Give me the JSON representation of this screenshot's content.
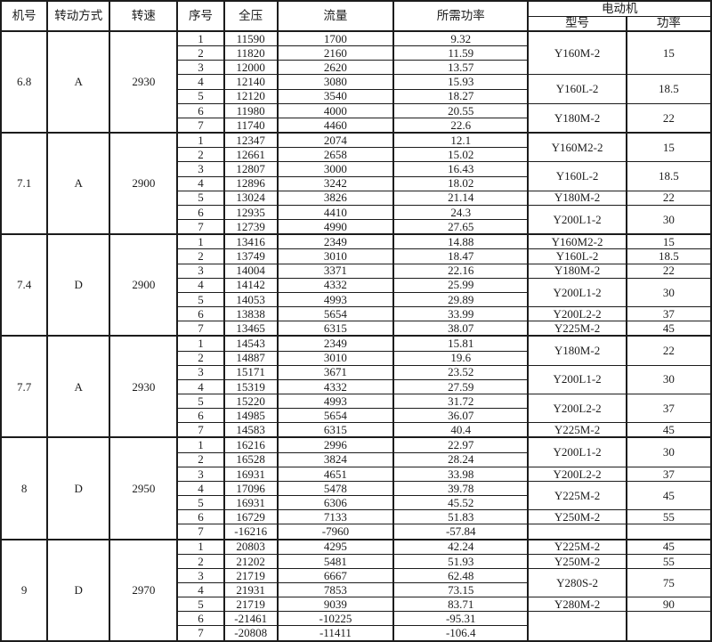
{
  "colors": {
    "border": "#1c1c1c",
    "text": "#1c1c1c",
    "background": "#ffffff"
  },
  "header": {
    "machine_no": "机号",
    "drive_mode": "转动方式",
    "speed": "转速",
    "seq_no": "序号",
    "total_pressure": "全压",
    "flow_rate": "流量",
    "required_power": "所需功率",
    "motor": "电动机",
    "motor_model": "型号",
    "motor_power": "功率"
  },
  "blocks": [
    {
      "machine": "6.8",
      "drive": "A",
      "speed": "2930",
      "rows": [
        {
          "no": "1",
          "pressure": "11590",
          "flow": "1700",
          "power": "9.32"
        },
        {
          "no": "2",
          "pressure": "11820",
          "flow": "2160",
          "power": "11.59"
        },
        {
          "no": "3",
          "pressure": "12000",
          "flow": "2620",
          "power": "13.57"
        },
        {
          "no": "4",
          "pressure": "12140",
          "flow": "3080",
          "power": "15.93"
        },
        {
          "no": "5",
          "pressure": "12120",
          "flow": "3540",
          "power": "18.27"
        },
        {
          "no": "6",
          "pressure": "11980",
          "flow": "4000",
          "power": "20.55"
        },
        {
          "no": "7",
          "pressure": "11740",
          "flow": "4460",
          "power": "22.6"
        }
      ],
      "motors": [
        {
          "model": "Y160M-2",
          "power": "15",
          "span": 3
        },
        {
          "model": "Y160L-2",
          "power": "18.5",
          "span": 2
        },
        {
          "model": "Y180M-2",
          "power": "22",
          "span": 2
        }
      ]
    },
    {
      "machine": "7.1",
      "drive": "A",
      "speed": "2900",
      "rows": [
        {
          "no": "1",
          "pressure": "12347",
          "flow": "2074",
          "power": "12.1"
        },
        {
          "no": "2",
          "pressure": "12661",
          "flow": "2658",
          "power": "15.02"
        },
        {
          "no": "3",
          "pressure": "12807",
          "flow": "3000",
          "power": "16.43"
        },
        {
          "no": "4",
          "pressure": "12896",
          "flow": "3242",
          "power": "18.02"
        },
        {
          "no": "5",
          "pressure": "13024",
          "flow": "3826",
          "power": "21.14"
        },
        {
          "no": "6",
          "pressure": "12935",
          "flow": "4410",
          "power": "24.3"
        },
        {
          "no": "7",
          "pressure": "12739",
          "flow": "4990",
          "power": "27.65"
        }
      ],
      "motors": [
        {
          "model": "Y160M2-2",
          "power": "15",
          "span": 2
        },
        {
          "model": "Y160L-2",
          "power": "18.5",
          "span": 2
        },
        {
          "model": "Y180M-2",
          "power": "22",
          "span": 1
        },
        {
          "model": "Y200L1-2",
          "power": "30",
          "span": 2
        }
      ]
    },
    {
      "machine": "7.4",
      "drive": "D",
      "speed": "2900",
      "rows": [
        {
          "no": "1",
          "pressure": "13416",
          "flow": "2349",
          "power": "14.88"
        },
        {
          "no": "2",
          "pressure": "13749",
          "flow": "3010",
          "power": "18.47"
        },
        {
          "no": "3",
          "pressure": "14004",
          "flow": "3371",
          "power": "22.16"
        },
        {
          "no": "4",
          "pressure": "14142",
          "flow": "4332",
          "power": "25.99"
        },
        {
          "no": "5",
          "pressure": "14053",
          "flow": "4993",
          "power": "29.89"
        },
        {
          "no": "6",
          "pressure": "13838",
          "flow": "5654",
          "power": "33.99"
        },
        {
          "no": "7",
          "pressure": "13465",
          "flow": "6315",
          "power": "38.07"
        }
      ],
      "motors": [
        {
          "model": "Y160M2-2",
          "power": "15",
          "span": 1
        },
        {
          "model": "Y160L-2",
          "power": "18.5",
          "span": 1
        },
        {
          "model": "Y180M-2",
          "power": "22",
          "span": 1
        },
        {
          "model": "Y200L1-2",
          "power": "30",
          "span": 2
        },
        {
          "model": "Y200L2-2",
          "power": "37",
          "span": 1
        },
        {
          "model": "Y225M-2",
          "power": "45",
          "span": 1
        }
      ]
    },
    {
      "machine": "7.7",
      "drive": "A",
      "speed": "2930",
      "rows": [
        {
          "no": "1",
          "pressure": "14543",
          "flow": "2349",
          "power": "15.81"
        },
        {
          "no": "2",
          "pressure": "14887",
          "flow": "3010",
          "power": "19.6"
        },
        {
          "no": "3",
          "pressure": "15171",
          "flow": "3671",
          "power": "23.52"
        },
        {
          "no": "4",
          "pressure": "15319",
          "flow": "4332",
          "power": "27.59"
        },
        {
          "no": "5",
          "pressure": "15220",
          "flow": "4993",
          "power": "31.72"
        },
        {
          "no": "6",
          "pressure": "14985",
          "flow": "5654",
          "power": "36.07"
        },
        {
          "no": "7",
          "pressure": "14583",
          "flow": "6315",
          "power": "40.4"
        }
      ],
      "motors": [
        {
          "model": "Y180M-2",
          "power": "22",
          "span": 2
        },
        {
          "model": "Y200L1-2",
          "power": "30",
          "span": 2
        },
        {
          "model": "Y200L2-2",
          "power": "37",
          "span": 2
        },
        {
          "model": "Y225M-2",
          "power": "45",
          "span": 1
        }
      ]
    },
    {
      "machine": "8",
      "drive": "D",
      "speed": "2950",
      "rows": [
        {
          "no": "1",
          "pressure": "16216",
          "flow": "2996",
          "power": "22.97"
        },
        {
          "no": "2",
          "pressure": "16528",
          "flow": "3824",
          "power": "28.24"
        },
        {
          "no": "3",
          "pressure": "16931",
          "flow": "4651",
          "power": "33.98"
        },
        {
          "no": "4",
          "pressure": "17096",
          "flow": "5478",
          "power": "39.78"
        },
        {
          "no": "5",
          "pressure": "16931",
          "flow": "6306",
          "power": "45.52"
        },
        {
          "no": "6",
          "pressure": "16729",
          "flow": "7133",
          "power": "51.83"
        },
        {
          "no": "7",
          "pressure": "-16216",
          "flow": "-7960",
          "power": "-57.84"
        }
      ],
      "motors": [
        {
          "model": "Y200L1-2",
          "power": "30",
          "span": 2
        },
        {
          "model": "Y200L2-2",
          "power": "37",
          "span": 1
        },
        {
          "model": "Y225M-2",
          "power": "45",
          "span": 2
        },
        {
          "model": "Y250M-2",
          "power": "55",
          "span": 1
        },
        {
          "model": "",
          "power": "",
          "span": 1
        }
      ]
    },
    {
      "machine": "9",
      "drive": "D",
      "speed": "2970",
      "rows": [
        {
          "no": "1",
          "pressure": "20803",
          "flow": "4295",
          "power": "42.24"
        },
        {
          "no": "2",
          "pressure": "21202",
          "flow": "5481",
          "power": "51.93"
        },
        {
          "no": "3",
          "pressure": "21719",
          "flow": "6667",
          "power": "62.48"
        },
        {
          "no": "4",
          "pressure": "21931",
          "flow": "7853",
          "power": "73.15"
        },
        {
          "no": "5",
          "pressure": "21719",
          "flow": "9039",
          "power": "83.71"
        },
        {
          "no": "6",
          "pressure": "-21461",
          "flow": "-10225",
          "power": "-95.31"
        },
        {
          "no": "7",
          "pressure": "-20808",
          "flow": "-11411",
          "power": "-106.4"
        }
      ],
      "motors": [
        {
          "model": "Y225M-2",
          "power": "45",
          "span": 1
        },
        {
          "model": "Y250M-2",
          "power": "55",
          "span": 1
        },
        {
          "model": "Y280S-2",
          "power": "75",
          "span": 2
        },
        {
          "model": "Y280M-2",
          "power": "90",
          "span": 1
        },
        {
          "model": "",
          "power": "",
          "span": 2
        }
      ]
    }
  ]
}
